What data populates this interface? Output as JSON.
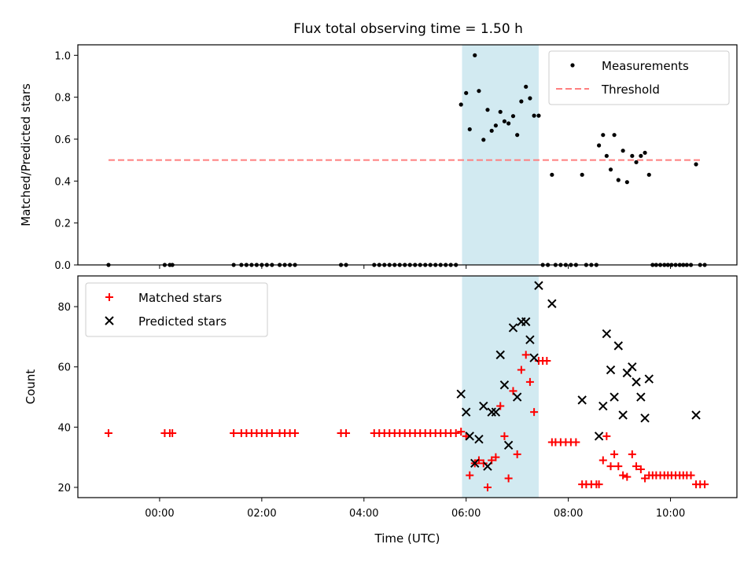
{
  "chart_data": {
    "title": "Flux total observing time = 1.50 h",
    "shared_x": {
      "label": "Time (UTC)",
      "unit": "hours relative to 00:00",
      "range": [
        -1.6,
        11.3
      ],
      "ticks": [
        0,
        2,
        4,
        6,
        8,
        10
      ],
      "tick_labels": [
        "00:00",
        "02:00",
        "04:00",
        "06:00",
        "08:00",
        "10:00"
      ]
    },
    "highlight_span": {
      "x0": 5.92,
      "x1": 7.42,
      "color": "#add8e6"
    },
    "panels": [
      {
        "type": "scatter",
        "ylabel": "Matched/Predicted stars",
        "ylim": [
          0,
          1.05
        ],
        "yticks": [
          0.0,
          0.2,
          0.4,
          0.6,
          0.8,
          1.0
        ],
        "ytick_labels": [
          "0.0",
          "0.2",
          "0.4",
          "0.6",
          "0.8",
          "1.0"
        ],
        "legend": [
          {
            "label": "Measurements",
            "marker": "dot",
            "color": "#000000"
          },
          {
            "label": "Threshold",
            "marker": "dashed-line",
            "color": "#ff7f7f"
          }
        ],
        "threshold": {
          "value": 0.5,
          "x0": -1.0,
          "x1": 10.6,
          "color": "#ff7f7f"
        },
        "series": [
          {
            "name": "Measurements",
            "color": "#000000",
            "points": [
              [
                -1.0,
                0
              ],
              [
                0.1,
                0
              ],
              [
                0.2,
                0
              ],
              [
                0.25,
                0
              ],
              [
                1.45,
                0
              ],
              [
                1.6,
                0
              ],
              [
                1.7,
                0
              ],
              [
                1.8,
                0
              ],
              [
                1.9,
                0
              ],
              [
                2.0,
                0
              ],
              [
                2.1,
                0
              ],
              [
                2.2,
                0
              ],
              [
                2.35,
                0
              ],
              [
                2.45,
                0
              ],
              [
                2.55,
                0
              ],
              [
                2.65,
                0
              ],
              [
                3.55,
                0
              ],
              [
                3.65,
                0
              ],
              [
                4.2,
                0
              ],
              [
                4.3,
                0
              ],
              [
                4.4,
                0
              ],
              [
                4.5,
                0
              ],
              [
                4.6,
                0
              ],
              [
                4.7,
                0
              ],
              [
                4.8,
                0
              ],
              [
                4.9,
                0
              ],
              [
                5.0,
                0
              ],
              [
                5.1,
                0
              ],
              [
                5.2,
                0
              ],
              [
                5.3,
                0
              ],
              [
                5.4,
                0
              ],
              [
                5.5,
                0
              ],
              [
                5.6,
                0
              ],
              [
                5.7,
                0
              ],
              [
                5.8,
                0
              ],
              [
                5.9,
                0.765
              ],
              [
                6.0,
                0.82
              ],
              [
                6.07,
                0.647
              ],
              [
                6.17,
                1.0
              ],
              [
                6.25,
                0.83
              ],
              [
                6.34,
                0.597
              ],
              [
                6.42,
                0.74
              ],
              [
                6.5,
                0.64
              ],
              [
                6.58,
                0.665
              ],
              [
                6.67,
                0.73
              ],
              [
                6.75,
                0.685
              ],
              [
                6.83,
                0.675
              ],
              [
                6.92,
                0.71
              ],
              [
                7.0,
                0.62
              ],
              [
                7.08,
                0.78
              ],
              [
                7.17,
                0.85
              ],
              [
                7.25,
                0.795
              ],
              [
                7.33,
                0.712
              ],
              [
                7.42,
                0.712
              ],
              [
                7.5,
                0
              ],
              [
                7.6,
                0
              ],
              [
                7.68,
                0.43
              ],
              [
                7.75,
                0
              ],
              [
                7.85,
                0
              ],
              [
                7.95,
                0
              ],
              [
                8.05,
                0
              ],
              [
                8.15,
                0
              ],
              [
                8.27,
                0.43
              ],
              [
                8.35,
                0
              ],
              [
                8.45,
                0
              ],
              [
                8.55,
                0
              ],
              [
                8.6,
                0.57
              ],
              [
                8.68,
                0.62
              ],
              [
                8.75,
                0.52
              ],
              [
                8.83,
                0.455
              ],
              [
                8.9,
                0.62
              ],
              [
                8.98,
                0.405
              ],
              [
                9.07,
                0.545
              ],
              [
                9.15,
                0.395
              ],
              [
                9.25,
                0.52
              ],
              [
                9.33,
                0.49
              ],
              [
                9.42,
                0.52
              ],
              [
                9.5,
                0.535
              ],
              [
                9.58,
                0.43
              ],
              [
                9.65,
                0
              ],
              [
                9.72,
                0
              ],
              [
                9.8,
                0
              ],
              [
                9.88,
                0
              ],
              [
                9.95,
                0
              ],
              [
                10.02,
                0
              ],
              [
                10.1,
                0
              ],
              [
                10.18,
                0
              ],
              [
                10.25,
                0
              ],
              [
                10.32,
                0
              ],
              [
                10.4,
                0
              ],
              [
                10.5,
                0.48
              ],
              [
                10.58,
                0
              ],
              [
                10.67,
                0
              ]
            ]
          }
        ]
      },
      {
        "type": "scatter",
        "ylabel": "Count",
        "ylim": [
          16.6,
          90.2
        ],
        "yticks": [
          20,
          40,
          60,
          80
        ],
        "ytick_labels": [
          "20",
          "40",
          "60",
          "80"
        ],
        "legend": [
          {
            "label": "Matched stars",
            "marker": "plus",
            "color": "#ff0000"
          },
          {
            "label": "Predicted stars",
            "marker": "x",
            "color": "#000000"
          }
        ],
        "series": [
          {
            "name": "Matched stars",
            "marker": "plus",
            "color": "#ff0000",
            "points": [
              [
                -1.0,
                38
              ],
              [
                0.1,
                38
              ],
              [
                0.2,
                38
              ],
              [
                0.25,
                38
              ],
              [
                1.45,
                38
              ],
              [
                1.6,
                38
              ],
              [
                1.7,
                38
              ],
              [
                1.8,
                38
              ],
              [
                1.9,
                38
              ],
              [
                2.0,
                38
              ],
              [
                2.1,
                38
              ],
              [
                2.2,
                38
              ],
              [
                2.35,
                38
              ],
              [
                2.45,
                38
              ],
              [
                2.55,
                38
              ],
              [
                2.65,
                38
              ],
              [
                3.55,
                38
              ],
              [
                3.65,
                38
              ],
              [
                4.2,
                38
              ],
              [
                4.3,
                38
              ],
              [
                4.4,
                38
              ],
              [
                4.5,
                38
              ],
              [
                4.6,
                38
              ],
              [
                4.7,
                38
              ],
              [
                4.8,
                38
              ],
              [
                4.9,
                38
              ],
              [
                5.0,
                38
              ],
              [
                5.1,
                38
              ],
              [
                5.2,
                38
              ],
              [
                5.3,
                38
              ],
              [
                5.4,
                38
              ],
              [
                5.5,
                38
              ],
              [
                5.6,
                38
              ],
              [
                5.7,
                38
              ],
              [
                5.8,
                38
              ],
              [
                5.9,
                38.5
              ],
              [
                6.0,
                37
              ],
              [
                6.07,
                24
              ],
              [
                6.17,
                28
              ],
              [
                6.25,
                29
              ],
              [
                6.34,
                28
              ],
              [
                6.42,
                20
              ],
              [
                6.5,
                29
              ],
              [
                6.58,
                30
              ],
              [
                6.67,
                47
              ],
              [
                6.75,
                37
              ],
              [
                6.83,
                23
              ],
              [
                6.92,
                52
              ],
              [
                7.0,
                31
              ],
              [
                7.08,
                59
              ],
              [
                7.17,
                64
              ],
              [
                7.25,
                55
              ],
              [
                7.33,
                45
              ],
              [
                7.42,
                62
              ],
              [
                7.5,
                62
              ],
              [
                7.58,
                62
              ],
              [
                7.68,
                35
              ],
              [
                7.75,
                35
              ],
              [
                7.85,
                35
              ],
              [
                7.95,
                35
              ],
              [
                8.05,
                35
              ],
              [
                8.15,
                35
              ],
              [
                8.27,
                21
              ],
              [
                8.35,
                21
              ],
              [
                8.45,
                21
              ],
              [
                8.55,
                21
              ],
              [
                8.6,
                21
              ],
              [
                8.68,
                29
              ],
              [
                8.75,
                37
              ],
              [
                8.83,
                27
              ],
              [
                8.9,
                31
              ],
              [
                8.98,
                27
              ],
              [
                9.07,
                24
              ],
              [
                9.15,
                23.5
              ],
              [
                9.25,
                31
              ],
              [
                9.33,
                27
              ],
              [
                9.42,
                26
              ],
              [
                9.5,
                23
              ],
              [
                9.58,
                24
              ],
              [
                9.65,
                24
              ],
              [
                9.72,
                24
              ],
              [
                9.8,
                24
              ],
              [
                9.88,
                24
              ],
              [
                9.95,
                24
              ],
              [
                10.02,
                24
              ],
              [
                10.1,
                24
              ],
              [
                10.18,
                24
              ],
              [
                10.25,
                24
              ],
              [
                10.32,
                24
              ],
              [
                10.4,
                24
              ],
              [
                10.5,
                21
              ],
              [
                10.58,
                21
              ],
              [
                10.67,
                21
              ]
            ]
          },
          {
            "name": "Predicted stars",
            "marker": "x",
            "color": "#000000",
            "points": [
              [
                5.9,
                51
              ],
              [
                6.0,
                45
              ],
              [
                6.07,
                37
              ],
              [
                6.17,
                28
              ],
              [
                6.25,
                36
              ],
              [
                6.34,
                47
              ],
              [
                6.42,
                27
              ],
              [
                6.5,
                45
              ],
              [
                6.58,
                45
              ],
              [
                6.67,
                64
              ],
              [
                6.75,
                54
              ],
              [
                6.83,
                34
              ],
              [
                6.92,
                73
              ],
              [
                7.0,
                50
              ],
              [
                7.08,
                75
              ],
              [
                7.17,
                75
              ],
              [
                7.25,
                69
              ],
              [
                7.33,
                63
              ],
              [
                7.42,
                87
              ],
              [
                7.68,
                81
              ],
              [
                8.27,
                49
              ],
              [
                8.6,
                37
              ],
              [
                8.68,
                47
              ],
              [
                8.75,
                71
              ],
              [
                8.83,
                59
              ],
              [
                8.9,
                50
              ],
              [
                8.98,
                67
              ],
              [
                9.07,
                44
              ],
              [
                9.15,
                58
              ],
              [
                9.25,
                60
              ],
              [
                9.33,
                55
              ],
              [
                9.42,
                50
              ],
              [
                9.5,
                43
              ],
              [
                9.58,
                56
              ],
              [
                10.5,
                44
              ]
            ]
          }
        ]
      }
    ]
  }
}
